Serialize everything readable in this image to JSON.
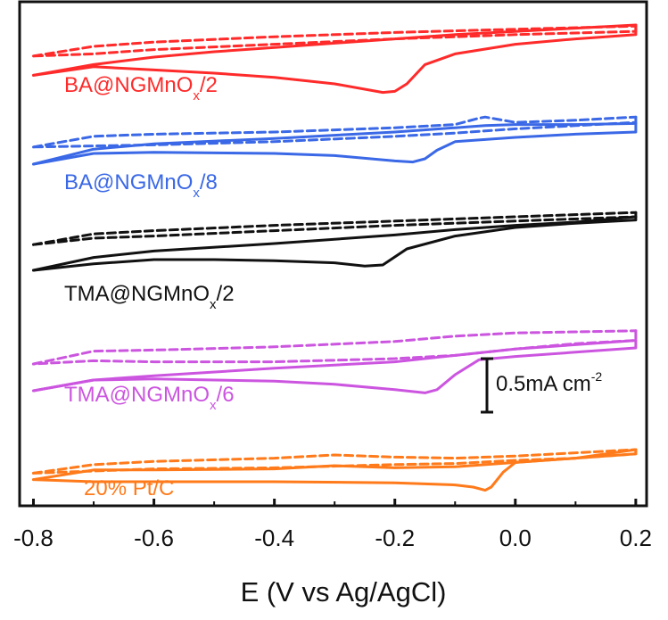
{
  "chart_data": {
    "type": "line",
    "title": "",
    "xlabel": "E (V vs Ag/AgCl)",
    "ylabel": "",
    "xlim": [
      -0.82,
      0.215
    ],
    "xticks": [
      -0.8,
      -0.6,
      -0.4,
      -0.2,
      0.0,
      0.2
    ],
    "xtick_labels": [
      "-0.8",
      "-0.6",
      "-0.4",
      "-0.2",
      "0.0",
      "0.2"
    ],
    "y_axis_labelled": false,
    "y_units": "mA cm-2 (relative, curves vertically offset)",
    "scale_bar": {
      "value": 0.5,
      "prefix": "0.5mA cm",
      "superscript": "-2"
    },
    "line_styles": {
      "solid": "solid",
      "dashed": "dashed"
    },
    "series": [
      {
        "label_main": "BA@NGMnO",
        "label_sub": "x",
        "label_tail": "/2",
        "color": "#ff2a2a",
        "solid": {
          "forward": [
            [
              -0.8,
              -0.22
            ],
            [
              -0.7,
              -0.12
            ],
            [
              -0.6,
              -0.05
            ],
            [
              -0.5,
              0.0
            ],
            [
              -0.4,
              0.04
            ],
            [
              -0.3,
              0.08
            ],
            [
              -0.2,
              0.12
            ],
            [
              -0.1,
              0.16
            ],
            [
              0.0,
              0.19
            ],
            [
              0.1,
              0.22
            ],
            [
              0.2,
              0.25
            ]
          ],
          "reverse": [
            [
              0.2,
              0.25
            ],
            [
              0.2,
              0.16
            ],
            [
              0.15,
              0.14
            ],
            [
              0.1,
              0.12
            ],
            [
              0.0,
              0.07
            ],
            [
              -0.1,
              -0.02
            ],
            [
              -0.15,
              -0.12
            ],
            [
              -0.18,
              -0.3
            ],
            [
              -0.2,
              -0.37
            ],
            [
              -0.22,
              -0.38
            ],
            [
              -0.3,
              -0.3
            ],
            [
              -0.4,
              -0.24
            ],
            [
              -0.5,
              -0.2
            ],
            [
              -0.6,
              -0.17
            ],
            [
              -0.7,
              -0.14
            ],
            [
              -0.8,
              -0.22
            ]
          ]
        },
        "dashed": {
          "forward": [
            [
              -0.8,
              -0.04
            ],
            [
              -0.7,
              0.05
            ],
            [
              -0.6,
              0.09
            ],
            [
              -0.4,
              0.14
            ],
            [
              -0.2,
              0.18
            ],
            [
              0.0,
              0.21
            ],
            [
              0.2,
              0.24
            ]
          ],
          "reverse": [
            [
              0.2,
              0.24
            ],
            [
              0.2,
              0.19
            ],
            [
              0.0,
              0.16
            ],
            [
              -0.2,
              0.12
            ],
            [
              -0.4,
              0.07
            ],
            [
              -0.6,
              0.02
            ],
            [
              -0.7,
              -0.02
            ],
            [
              -0.8,
              -0.04
            ]
          ]
        }
      },
      {
        "label_main": "BA@NGMnO",
        "label_sub": "x",
        "label_tail": "/8",
        "color": "#3a68e6",
        "solid": {
          "forward": [
            [
              -0.8,
              -0.3
            ],
            [
              -0.7,
              -0.16
            ],
            [
              -0.6,
              -0.11
            ],
            [
              -0.4,
              -0.06
            ],
            [
              -0.2,
              0.0
            ],
            [
              -0.1,
              0.04
            ],
            [
              -0.05,
              0.06
            ],
            [
              0.0,
              0.07
            ],
            [
              0.1,
              0.07
            ],
            [
              0.2,
              0.08
            ]
          ],
          "reverse": [
            [
              0.2,
              0.08
            ],
            [
              0.2,
              0.0
            ],
            [
              0.1,
              -0.02
            ],
            [
              0.0,
              -0.05
            ],
            [
              -0.1,
              -0.09
            ],
            [
              -0.13,
              -0.17
            ],
            [
              -0.15,
              -0.25
            ],
            [
              -0.17,
              -0.28
            ],
            [
              -0.2,
              -0.27
            ],
            [
              -0.3,
              -0.22
            ],
            [
              -0.4,
              -0.2
            ],
            [
              -0.6,
              -0.19
            ],
            [
              -0.7,
              -0.2
            ],
            [
              -0.8,
              -0.3
            ]
          ]
        },
        "dashed": {
          "forward": [
            [
              -0.8,
              -0.14
            ],
            [
              -0.7,
              -0.04
            ],
            [
              -0.6,
              -0.02
            ],
            [
              -0.4,
              0.0
            ],
            [
              -0.2,
              0.04
            ],
            [
              -0.1,
              0.07
            ],
            [
              -0.06,
              0.13
            ],
            [
              -0.05,
              0.14
            ],
            [
              -0.03,
              0.12
            ],
            [
              0.0,
              0.09
            ],
            [
              0.1,
              0.11
            ],
            [
              0.2,
              0.14
            ]
          ],
          "reverse": [
            [
              0.2,
              0.14
            ],
            [
              0.2,
              0.09
            ],
            [
              0.1,
              0.06
            ],
            [
              0.0,
              0.03
            ],
            [
              -0.1,
              -0.01
            ],
            [
              -0.2,
              -0.04
            ],
            [
              -0.4,
              -0.09
            ],
            [
              -0.6,
              -0.12
            ],
            [
              -0.7,
              -0.13
            ],
            [
              -0.8,
              -0.14
            ]
          ]
        }
      },
      {
        "label_main": "TMA@NGMnO",
        "label_sub": "x",
        "label_tail": "/2",
        "color": "#111111",
        "solid": {
          "forward": [
            [
              -0.8,
              -0.4
            ],
            [
              -0.7,
              -0.28
            ],
            [
              -0.6,
              -0.22
            ],
            [
              -0.4,
              -0.15
            ],
            [
              -0.2,
              -0.07
            ],
            [
              -0.1,
              -0.02
            ],
            [
              0.0,
              0.02
            ],
            [
              0.1,
              0.05
            ],
            [
              0.2,
              0.1
            ]
          ],
          "reverse": [
            [
              0.2,
              0.1
            ],
            [
              0.2,
              0.07
            ],
            [
              0.1,
              0.04
            ],
            [
              0.0,
              0.0
            ],
            [
              -0.1,
              -0.08
            ],
            [
              -0.18,
              -0.2
            ],
            [
              -0.22,
              -0.35
            ],
            [
              -0.25,
              -0.36
            ],
            [
              -0.3,
              -0.33
            ],
            [
              -0.4,
              -0.31
            ],
            [
              -0.5,
              -0.3
            ],
            [
              -0.6,
              -0.3
            ],
            [
              -0.7,
              -0.34
            ],
            [
              -0.8,
              -0.4
            ]
          ]
        },
        "dashed": {
          "forward": [
            [
              -0.8,
              -0.16
            ],
            [
              -0.7,
              -0.06
            ],
            [
              -0.6,
              -0.03
            ],
            [
              -0.4,
              0.02
            ],
            [
              -0.2,
              0.06
            ],
            [
              0.0,
              0.1
            ],
            [
              0.2,
              0.14
            ]
          ],
          "reverse": [
            [
              0.2,
              0.14
            ],
            [
              0.2,
              0.1
            ],
            [
              0.0,
              0.06
            ],
            [
              -0.2,
              0.02
            ],
            [
              -0.4,
              -0.03
            ],
            [
              -0.6,
              -0.08
            ],
            [
              -0.7,
              -0.1
            ],
            [
              -0.8,
              -0.16
            ]
          ]
        }
      },
      {
        "label_main": "TMA@NGMnO",
        "label_sub": "x",
        "label_tail": "/6",
        "color": "#cc55e0",
        "solid": {
          "forward": [
            [
              -0.8,
              -0.5
            ],
            [
              -0.7,
              -0.4
            ],
            [
              -0.6,
              -0.36
            ],
            [
              -0.4,
              -0.29
            ],
            [
              -0.2,
              -0.23
            ],
            [
              -0.1,
              -0.17
            ],
            [
              0.0,
              -0.11
            ],
            [
              0.1,
              -0.07
            ],
            [
              0.2,
              -0.03
            ]
          ],
          "reverse": [
            [
              0.2,
              -0.03
            ],
            [
              0.2,
              -0.1
            ],
            [
              0.1,
              -0.14
            ],
            [
              0.0,
              -0.18
            ],
            [
              -0.06,
              -0.21
            ],
            [
              -0.1,
              -0.35
            ],
            [
              -0.13,
              -0.49
            ],
            [
              -0.15,
              -0.52
            ],
            [
              -0.2,
              -0.49
            ],
            [
              -0.3,
              -0.44
            ],
            [
              -0.4,
              -0.41
            ],
            [
              -0.6,
              -0.39
            ],
            [
              -0.7,
              -0.4
            ],
            [
              -0.8,
              -0.5
            ]
          ]
        },
        "dashed": {
          "forward": [
            [
              -0.8,
              -0.25
            ],
            [
              -0.7,
              -0.13
            ],
            [
              -0.6,
              -0.12
            ],
            [
              -0.4,
              -0.09
            ],
            [
              -0.2,
              -0.04
            ],
            [
              -0.1,
              0.01
            ],
            [
              0.0,
              0.04
            ],
            [
              0.1,
              0.05
            ],
            [
              0.2,
              0.06
            ]
          ],
          "reverse": [
            [
              0.2,
              0.06
            ],
            [
              0.2,
              -0.03
            ],
            [
              0.1,
              -0.06
            ],
            [
              0.0,
              -0.11
            ],
            [
              -0.1,
              -0.17
            ],
            [
              -0.2,
              -0.2
            ],
            [
              -0.4,
              -0.23
            ],
            [
              -0.6,
              -0.23
            ],
            [
              -0.7,
              -0.22
            ],
            [
              -0.8,
              -0.25
            ]
          ]
        }
      },
      {
        "label_main": "20% Pt/C",
        "label_sub": "",
        "label_tail": "",
        "color": "#ff7a1a",
        "solid": {
          "forward": [
            [
              -0.8,
              -0.33
            ],
            [
              -0.7,
              -0.24
            ],
            [
              -0.6,
              -0.24
            ],
            [
              -0.4,
              -0.23
            ],
            [
              -0.3,
              -0.2
            ],
            [
              -0.2,
              -0.22
            ],
            [
              -0.1,
              -0.21
            ],
            [
              0.0,
              -0.17
            ],
            [
              0.1,
              -0.13
            ],
            [
              0.2,
              -0.05
            ]
          ],
          "reverse": [
            [
              0.2,
              -0.05
            ],
            [
              0.2,
              -0.09
            ],
            [
              0.1,
              -0.13
            ],
            [
              0.0,
              -0.17
            ],
            [
              -0.02,
              -0.26
            ],
            [
              -0.04,
              -0.4
            ],
            [
              -0.05,
              -0.43
            ],
            [
              -0.07,
              -0.4
            ],
            [
              -0.1,
              -0.38
            ],
            [
              -0.2,
              -0.36
            ],
            [
              -0.4,
              -0.35
            ],
            [
              -0.6,
              -0.35
            ],
            [
              -0.7,
              -0.35
            ],
            [
              -0.8,
              -0.33
            ]
          ]
        },
        "dashed": {
          "forward": [
            [
              -0.8,
              -0.27
            ],
            [
              -0.7,
              -0.19
            ],
            [
              -0.6,
              -0.16
            ],
            [
              -0.4,
              -0.13
            ],
            [
              -0.3,
              -0.1
            ],
            [
              -0.2,
              -0.12
            ],
            [
              -0.1,
              -0.13
            ],
            [
              0.0,
              -0.11
            ],
            [
              0.1,
              -0.08
            ],
            [
              0.2,
              -0.05
            ]
          ],
          "reverse": [
            [
              0.2,
              -0.05
            ],
            [
              0.2,
              -0.09
            ],
            [
              0.1,
              -0.13
            ],
            [
              0.0,
              -0.15
            ],
            [
              -0.1,
              -0.18
            ],
            [
              -0.2,
              -0.19
            ],
            [
              -0.4,
              -0.22
            ],
            [
              -0.6,
              -0.23
            ],
            [
              -0.7,
              -0.25
            ],
            [
              -0.8,
              -0.27
            ]
          ]
        }
      }
    ]
  }
}
